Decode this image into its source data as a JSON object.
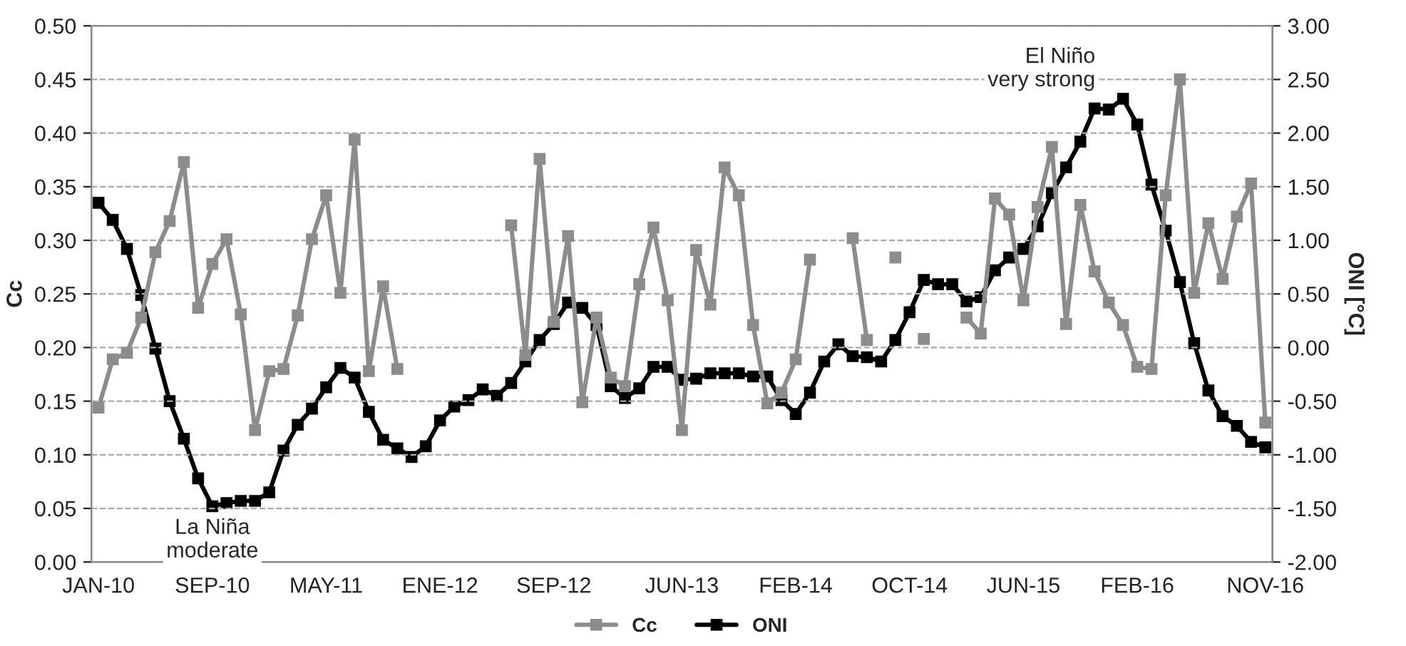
{
  "chart_data": {
    "type": "line",
    "xlabel": null,
    "ylabel": "Cc",
    "y2label": "ONI [°C]",
    "categories": [
      "JAN-10",
      null,
      null,
      null,
      null,
      null,
      null,
      null,
      "SEP-10",
      null,
      null,
      null,
      null,
      null,
      null,
      null,
      "MAY-11",
      null,
      null,
      null,
      null,
      null,
      null,
      null,
      "ENE-12",
      null,
      null,
      null,
      null,
      null,
      null,
      null,
      "SEP-12",
      null,
      null,
      null,
      null,
      null,
      null,
      null,
      null,
      "JUN-13",
      null,
      null,
      null,
      null,
      null,
      null,
      null,
      "FEB-14",
      null,
      null,
      null,
      null,
      null,
      null,
      null,
      "OCT-14",
      null,
      null,
      null,
      null,
      null,
      null,
      null,
      "JUN-15",
      null,
      null,
      null,
      null,
      null,
      null,
      null,
      "FEB-16",
      null,
      null,
      null,
      null,
      null,
      null,
      null,
      null,
      "NOV-16"
    ],
    "series": [
      {
        "name": "Cc",
        "color": "#8c8c8c",
        "values": [
          0.144,
          0.189,
          0.195,
          0.228,
          0.289,
          0.318,
          0.373,
          0.237,
          0.278,
          0.301,
          0.231,
          0.123,
          0.178,
          0.18,
          0.23,
          0.301,
          0.342,
          0.251,
          0.394,
          0.178,
          0.257,
          0.18,
          null,
          null,
          null,
          null,
          null,
          null,
          null,
          0.314,
          0.193,
          0.376,
          0.224,
          0.304,
          0.149,
          0.228,
          0.172,
          0.164,
          0.259,
          0.312,
          0.244,
          0.123,
          0.291,
          0.24,
          0.368,
          0.342,
          0.221,
          0.148,
          0.158,
          0.189,
          0.282,
          null,
          null,
          0.302,
          0.207,
          null,
          0.284,
          null,
          0.208,
          null,
          null,
          0.228,
          0.213,
          0.339,
          0.324,
          0.244,
          0.331,
          0.387,
          0.222,
          0.333,
          0.271,
          0.242,
          0.221,
          0.182,
          0.18,
          0.342,
          0.45,
          0.251,
          0.316,
          0.264,
          0.322,
          0.353,
          0.13
        ]
      },
      {
        "name": "ONI",
        "color": "#000000",
        "axis": "y2",
        "values": [
          1.35,
          1.19,
          0.92,
          0.49,
          -0.01,
          -0.5,
          -0.85,
          -1.22,
          -1.48,
          -1.45,
          -1.43,
          -1.43,
          -1.35,
          -0.96,
          -0.72,
          -0.57,
          -0.37,
          -0.19,
          -0.28,
          -0.6,
          -0.86,
          -0.94,
          -1.02,
          -0.92,
          -0.68,
          -0.55,
          -0.49,
          -0.39,
          -0.45,
          -0.33,
          -0.13,
          0.07,
          0.22,
          0.42,
          0.37,
          0.21,
          -0.36,
          -0.47,
          -0.38,
          -0.18,
          -0.18,
          -0.3,
          -0.29,
          -0.24,
          -0.24,
          -0.24,
          -0.27,
          -0.27,
          -0.49,
          -0.62,
          -0.42,
          -0.13,
          0.03,
          -0.08,
          -0.09,
          -0.13,
          0.07,
          0.33,
          0.63,
          0.59,
          0.59,
          0.43,
          0.47,
          0.72,
          0.84,
          0.92,
          1.13,
          1.44,
          1.68,
          1.92,
          2.23,
          2.22,
          2.32,
          2.08,
          1.52,
          1.09,
          0.61,
          0.04,
          -0.4,
          -0.64,
          -0.73,
          -0.88,
          -0.93
        ]
      }
    ],
    "ylim": [
      0,
      0.5
    ],
    "yticks": [
      {
        "value": 0,
        "label": "0.00"
      },
      {
        "value": 0.05,
        "label": "0.05"
      },
      {
        "value": 0.1,
        "label": "0.10"
      },
      {
        "value": 0.15,
        "label": "0.15"
      },
      {
        "value": 0.2,
        "label": "0.20"
      },
      {
        "value": 0.25,
        "label": "0.25"
      },
      {
        "value": 0.3,
        "label": "0.30"
      },
      {
        "value": 0.35,
        "label": "0.35"
      },
      {
        "value": 0.4,
        "label": "0.40"
      },
      {
        "value": 0.45,
        "label": "0.45"
      },
      {
        "value": 0.5,
        "label": "0.50"
      }
    ],
    "y2lim": [
      -2,
      3
    ],
    "y2ticks": [
      {
        "value": -2,
        "label": "-2.00"
      },
      {
        "value": -1.5,
        "label": "-1.50"
      },
      {
        "value": -1,
        "label": "-1.00"
      },
      {
        "value": -0.5,
        "label": "-0.50"
      },
      {
        "value": 0,
        "label": "0.00"
      },
      {
        "value": 0.5,
        "label": "0.50"
      },
      {
        "value": 1,
        "label": "1.00"
      },
      {
        "value": 1.5,
        "label": "1.50"
      },
      {
        "value": 2,
        "label": "2.00"
      },
      {
        "value": 2.5,
        "label": "2.50"
      },
      {
        "value": 3,
        "label": "3.00"
      }
    ],
    "annotations": [
      "La Niña\nmoderate",
      "El Niño\nvery strong"
    ],
    "grid": "y",
    "legend": "bottom",
    "marker": "square",
    "line_style": "solid"
  }
}
